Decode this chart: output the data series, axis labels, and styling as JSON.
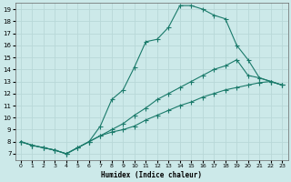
{
  "xlabel": "Humidex (Indice chaleur)",
  "bg_color": "#cce9e9",
  "line_color": "#1a7a6a",
  "grid_color": "#b8d8d8",
  "xlim": [
    -0.5,
    23.5
  ],
  "ylim": [
    6.5,
    19.5
  ],
  "xticks": [
    0,
    1,
    2,
    3,
    4,
    5,
    6,
    7,
    8,
    9,
    10,
    11,
    12,
    13,
    14,
    15,
    16,
    17,
    18,
    19,
    20,
    21,
    22,
    23
  ],
  "yticks": [
    7,
    8,
    9,
    10,
    11,
    12,
    13,
    14,
    15,
    16,
    17,
    18,
    19
  ],
  "curve1_x": [
    0,
    1,
    2,
    3,
    4,
    5,
    6,
    7,
    8,
    9,
    10,
    11,
    12,
    13,
    14,
    15,
    16,
    17,
    18,
    19,
    20,
    21,
    22,
    23
  ],
  "curve1_y": [
    8.0,
    7.7,
    7.5,
    7.3,
    7.0,
    7.5,
    8.0,
    9.3,
    11.5,
    12.3,
    14.2,
    16.3,
    16.5,
    17.5,
    19.3,
    19.3,
    19.0,
    18.5,
    18.2,
    16.0,
    14.8,
    13.3,
    13.0,
    12.7
  ],
  "curve2_x": [
    0,
    1,
    2,
    3,
    4,
    5,
    6,
    7,
    8,
    9,
    10,
    11,
    12,
    13,
    14,
    15,
    16,
    17,
    18,
    19,
    20,
    21,
    22,
    23
  ],
  "curve2_y": [
    8.0,
    7.7,
    7.5,
    7.3,
    7.0,
    7.5,
    8.0,
    8.5,
    9.0,
    9.5,
    10.2,
    10.8,
    11.5,
    12.0,
    12.5,
    13.0,
    13.5,
    14.0,
    14.3,
    14.8,
    13.5,
    13.3,
    13.0,
    12.7
  ],
  "curve3_x": [
    0,
    1,
    2,
    3,
    4,
    5,
    6,
    7,
    8,
    9,
    10,
    11,
    12,
    13,
    14,
    15,
    16,
    17,
    18,
    19,
    20,
    21,
    22,
    23
  ],
  "curve3_y": [
    8.0,
    7.7,
    7.5,
    7.3,
    7.0,
    7.5,
    8.0,
    8.5,
    8.8,
    9.0,
    9.3,
    9.8,
    10.2,
    10.6,
    11.0,
    11.3,
    11.7,
    12.0,
    12.3,
    12.5,
    12.7,
    12.9,
    13.0,
    12.7
  ]
}
